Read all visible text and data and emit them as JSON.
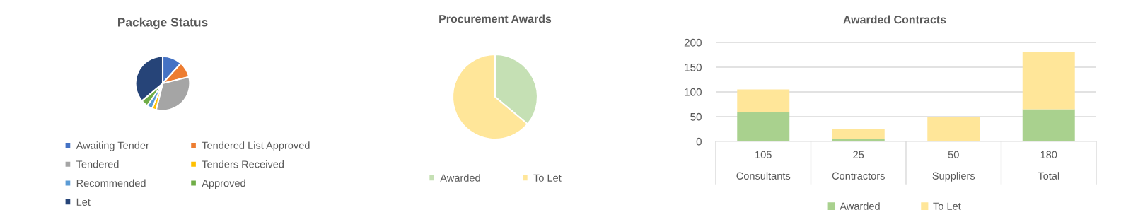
{
  "chart_data": [
    {
      "type": "pie",
      "title": "Package Status",
      "categories": [
        "Awaiting Tender",
        "Tendered List Approved",
        "Tendered",
        "Tenders Received",
        "Recommended",
        "Approved",
        "Let"
      ],
      "values": [
        11.7,
        9.4,
        32.8,
        2.5,
        3.3,
        4.2,
        36.1
      ],
      "colors": [
        "#4472c4",
        "#ed7d31",
        "#a5a5a5",
        "#ffc000",
        "#5b9bd5",
        "#70ad47",
        "#264478"
      ],
      "legend": "bottom"
    },
    {
      "type": "pie",
      "title": "Procurement Awards",
      "categories": [
        "Awarded",
        "To Let"
      ],
      "values": [
        36.1,
        63.9
      ],
      "colors": [
        "#c5e0b4",
        "#ffe699"
      ],
      "legend": "bottom"
    },
    {
      "type": "bar",
      "title": "Awarded Contracts",
      "categories": [
        "Consultants",
        "Contractors",
        "Suppliers",
        "Total"
      ],
      "stacked": true,
      "series": [
        {
          "name": "Awarded",
          "color": "#a9d18e",
          "values": [
            60,
            5,
            0,
            65
          ]
        },
        {
          "name": "To Let",
          "color": "#ffe699",
          "values": [
            45,
            20,
            50,
            115
          ]
        }
      ],
      "totals": [
        "105",
        "25",
        "50",
        "180"
      ],
      "ylim": [
        0,
        200
      ],
      "yticks": [
        0,
        50,
        100,
        150,
        200
      ],
      "grid": "y",
      "legend": "bottom"
    }
  ]
}
